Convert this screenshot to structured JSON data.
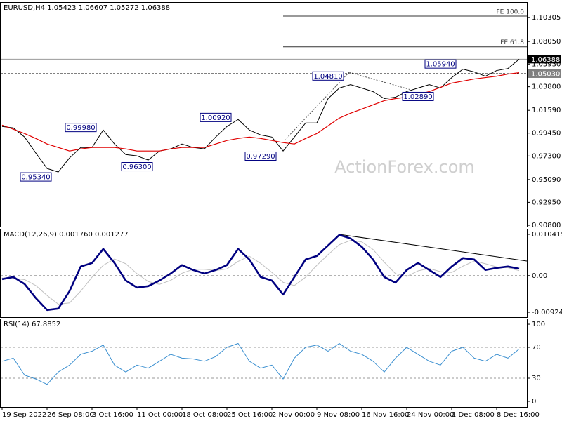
{
  "chart_data": [
    {
      "type": "line",
      "title": "EURUSD,H4 1.05423 1.06607 1.05272 1.06388",
      "ylim": [
        0.9067,
        1.1168
      ],
      "yticks": [
        1.10305,
        {
          "value": 1.0805,
          "label": "1.08050"
        },
        {
          "value": 1.0593,
          "label": "1.05930"
        },
        {
          "value": 1.038,
          "label": "1.03800"
        },
        {
          "value": 1.0159,
          "label": "1.01590"
        },
        {
          "value": 0.9945,
          "label": "0.99450"
        },
        {
          "value": 0.973,
          "label": "0.97300"
        },
        {
          "value": 0.9509,
          "label": "0.95090"
        },
        {
          "value": 0.9295,
          "label": "0.92950"
        },
        {
          "value": 0.908,
          "label": "0.90800"
        }
      ],
      "series": [
        {
          "color": "#000000",
          "width": 1,
          "values": [
            1.0007,
            0.9994,
            0.9908,
            0.9758,
            0.9613,
            0.958,
            0.9712,
            0.981,
            0.981,
            0.9974,
            0.9843,
            0.9744,
            0.9731,
            0.9692,
            0.9777,
            0.9797,
            0.9843,
            0.981,
            0.9797,
            0.9908,
            1.0007,
            1.0073,
            0.9974,
            0.9928,
            0.9908,
            0.9777,
            0.9908,
            1.004,
            1.004,
            1.0269,
            1.0368,
            1.04,
            1.0368,
            1.0335,
            1.0269,
            1.0282,
            1.0335,
            1.0368,
            1.04,
            1.0368,
            1.0466,
            1.0545,
            1.0519,
            1.0479,
            1.0532,
            1.0551,
            1.06388
          ]
        },
        {
          "color": "#e00000",
          "width": 1.2,
          "values": [
            1.002,
            0.9981,
            0.9941,
            0.9895,
            0.9843,
            0.981,
            0.9777,
            0.9797,
            0.981,
            0.981,
            0.981,
            0.9797,
            0.9777,
            0.9777,
            0.9777,
            0.9797,
            0.981,
            0.981,
            0.981,
            0.9843,
            0.9876,
            0.9895,
            0.9908,
            0.9895,
            0.9876,
            0.9856,
            0.9843,
            0.9895,
            0.9941,
            1.0013,
            1.0086,
            1.0132,
            1.0171,
            1.021,
            1.025,
            1.0269,
            1.0282,
            1.0309,
            1.0335,
            1.0374,
            1.0414,
            1.0433,
            1.0453,
            1.0466,
            1.0479,
            1.0499,
            1.0512
          ]
        }
      ],
      "annotations": [
        {
          "text": "0.99980",
          "value": 0.9998,
          "index": 6
        },
        {
          "text": "0.95340",
          "value": 0.9534,
          "index": 2
        },
        {
          "text": "0.96300",
          "value": 0.963,
          "index": 11
        },
        {
          "text": "1.00920",
          "value": 1.0092,
          "index": 18
        },
        {
          "text": "0.97290",
          "value": 0.9729,
          "index": 22
        },
        {
          "text": "1.04810",
          "value": 1.0481,
          "index": 28
        },
        {
          "text": "1.05940",
          "value": 1.0594,
          "index": 38
        },
        {
          "text": "1.02890",
          "value": 1.0289,
          "index": 36
        }
      ],
      "fe_levels": [
        {
          "label": "FE 100.0",
          "value": 1.1043,
          "index": 25
        },
        {
          "label": "FE 61.8",
          "value": 1.0755,
          "index": 25
        }
      ],
      "hlines": [
        {
          "value": 1.06388,
          "style": "solid",
          "box": "#000000"
        },
        {
          "value": 1.0503,
          "label": "1.05030",
          "style": "dashed",
          "box": "#808080"
        }
      ],
      "watermark": "ActionForex.com"
    },
    {
      "type": "line",
      "title": "MACD(12,26,9) 0.001760 0.001277",
      "ylim": [
        -0.01048,
        0.01165
      ],
      "yticks": [
        0.010415,
        {
          "value": 0,
          "label": "0.00"
        },
        -0.009244
      ],
      "series": [
        {
          "color": "#c0c0c0",
          "width": 1,
          "values": [
            -0.0006,
            -0.0007,
            -0.001,
            -0.0025,
            -0.005,
            -0.0072,
            -0.0069,
            -0.0039,
            -0.0004,
            0.0026,
            0.0042,
            0.003,
            0.0005,
            -0.0015,
            -0.0022,
            -0.0012,
            0.0006,
            0.0016,
            0.0016,
            0.0013,
            0.0017,
            0.0036,
            0.0049,
            0.0031,
            0.0008,
            -0.0017,
            -0.0025,
            -0.0004,
            0.0026,
            0.0053,
            0.0078,
            0.0089,
            0.0085,
            0.0066,
            0.0034,
            0.0005,
            -0.0002,
            0.0012,
            0.0018,
            0.001,
            0.0008,
            0.0024,
            0.0037,
            0.003,
            0.0022,
            0.002,
            0.001277
          ]
        },
        {
          "color": "#000080",
          "width": 2.6,
          "values": [
            -0.00089,
            -0.00035,
            -0.00212,
            -0.00566,
            -0.00867,
            -0.00832,
            -0.00389,
            0.0023,
            0.00319,
            0.00673,
            0.00319,
            -0.00124,
            -0.00301,
            -0.00266,
            -0.00124,
            0.00053,
            0.00266,
            0.00142,
            0.00053,
            0.00142,
            0.00266,
            0.00673,
            0.00407,
            -0.00035,
            -0.00124,
            -0.00478,
            -0.00035,
            0.00407,
            0.00496,
            0.00761,
            0.01027,
            0.00938,
            0.00726,
            0.00407,
            -0.00035,
            -0.00177,
            0.00142,
            0.00319,
            0.00142,
            -0.00035,
            0.0023,
            0.00443,
            0.00407,
            0.00142,
            0.00195,
            0.0023,
            0.00176
          ]
        }
      ]
    },
    {
      "type": "line",
      "title": "RSI(14) 67.8852",
      "ylim": [
        -7.3,
        106.4
      ],
      "yticks": [
        100,
        70,
        30,
        0
      ],
      "levels": [
        70,
        30
      ],
      "categories": [
        "19 Sep 2022",
        null,
        null,
        null,
        "26 Sep 08:00",
        null,
        null,
        null,
        "3 Oct 16:00",
        null,
        null,
        null,
        "11 Oct 00:00",
        null,
        null,
        null,
        "18 Oct 08:00",
        null,
        null,
        null,
        "25 Oct 16:00",
        null,
        null,
        null,
        "2 Nov 00:00",
        null,
        null,
        null,
        "9 Nov 08:00",
        null,
        null,
        null,
        "16 Nov 16:00",
        null,
        null,
        null,
        "24 Nov 00:00",
        null,
        null,
        null,
        "1 Dec 08:00",
        null,
        null,
        null,
        "8 Dec 16:00",
        null,
        null
      ],
      "series": [
        {
          "color": "#3a8fd0",
          "width": 1,
          "values": [
            52,
            56,
            34,
            29,
            22,
            38,
            47,
            61,
            65,
            73,
            47,
            38,
            47,
            43,
            52,
            61,
            56,
            55,
            52,
            58,
            70,
            75,
            52,
            43,
            47,
            29,
            56,
            70,
            73,
            65,
            75,
            65,
            61,
            52,
            38,
            56,
            70,
            61,
            52,
            47,
            65,
            70,
            56,
            52,
            61,
            56,
            67.8852
          ]
        }
      ]
    }
  ]
}
